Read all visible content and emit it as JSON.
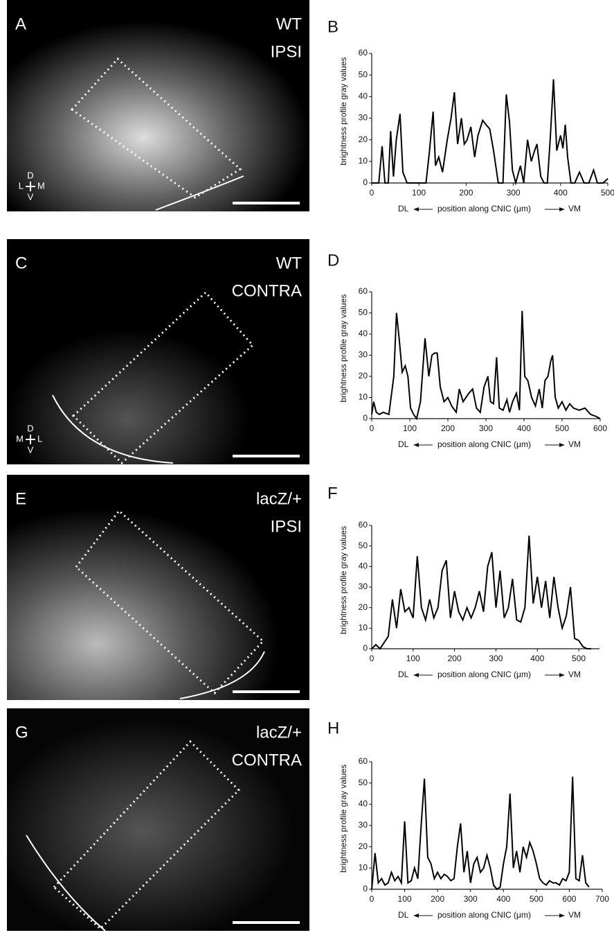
{
  "panels": [
    {
      "label": "A",
      "title_lines": [
        "WT",
        "IPSI"
      ],
      "orientation": {
        "top": "D",
        "left": "L",
        "right": "M",
        "bottom": "V"
      }
    },
    {
      "label": "C",
      "title_lines": [
        "WT",
        "CONTRA"
      ],
      "orientation": {
        "top": "D",
        "left": "M",
        "right": "L",
        "bottom": "V"
      }
    },
    {
      "label": "E",
      "title_lines": [
        "lacZ/+",
        "IPSI"
      ]
    },
    {
      "label": "G",
      "title_lines": [
        "lacZ/+",
        "CONTRA"
      ]
    }
  ],
  "chart_data": [
    {
      "type": "line",
      "panel_label": "B",
      "y_label": "brightness profile gray values",
      "x_label_left": "DL",
      "x_label": "position along CNIC (μm)",
      "x_label_right": "VM",
      "xlim": [
        0,
        500
      ],
      "xticks": [
        0,
        100,
        200,
        300,
        400,
        500
      ],
      "ylim": [
        0,
        60
      ],
      "yticks": [
        0,
        10,
        20,
        30,
        40,
        50,
        60
      ],
      "x": [
        0,
        15,
        22,
        28,
        35,
        40,
        46,
        52,
        60,
        66,
        75,
        85,
        95,
        105,
        115,
        122,
        130,
        135,
        142,
        150,
        160,
        168,
        175,
        182,
        190,
        196,
        202,
        210,
        218,
        225,
        235,
        242,
        250,
        258,
        268,
        278,
        285,
        292,
        298,
        305,
        315,
        322,
        330,
        338,
        345,
        350,
        358,
        365,
        372,
        378,
        385,
        392,
        400,
        405,
        410,
        415,
        422,
        430,
        440,
        450,
        460,
        470,
        478,
        490,
        500
      ],
      "series": [
        {
          "color": "#000000",
          "values": [
            0,
            0,
            17,
            0,
            0,
            24,
            3,
            20,
            32,
            5,
            0,
            0,
            0,
            0,
            0,
            14,
            33,
            8,
            12,
            5,
            20,
            30,
            42,
            18,
            30,
            18,
            20,
            26,
            12,
            22,
            29,
            27,
            25,
            15,
            0,
            0,
            41,
            28,
            6,
            0,
            8,
            0,
            20,
            10,
            15,
            18,
            3,
            0,
            0,
            20,
            48,
            15,
            22,
            16,
            27,
            12,
            0,
            0,
            5,
            0,
            0,
            6,
            0,
            0,
            2
          ]
        }
      ]
    },
    {
      "type": "line",
      "panel_label": "D",
      "y_label": "brightness profile gray values",
      "x_label_left": "DL",
      "x_label": "position along CNIC (μm)",
      "x_label_right": "VM",
      "xlim": [
        0,
        600
      ],
      "xticks": [
        0,
        100,
        200,
        300,
        400,
        500,
        600
      ],
      "ylim": [
        0,
        60
      ],
      "yticks": [
        0,
        10,
        20,
        30,
        40,
        50,
        60
      ],
      "x": [
        0,
        5,
        12,
        20,
        30,
        45,
        58,
        65,
        72,
        80,
        88,
        95,
        102,
        110,
        118,
        128,
        140,
        150,
        158,
        165,
        172,
        180,
        190,
        200,
        210,
        222,
        230,
        240,
        255,
        265,
        275,
        285,
        295,
        305,
        312,
        320,
        328,
        335,
        345,
        355,
        362,
        370,
        380,
        388,
        395,
        402,
        410,
        420,
        430,
        440,
        448,
        455,
        463,
        470,
        475,
        482,
        490,
        500,
        510,
        520,
        530,
        545,
        560,
        575,
        590,
        600
      ],
      "series": [
        {
          "color": "#000000",
          "values": [
            2,
            8,
            3,
            2,
            3,
            2,
            20,
            50,
            38,
            22,
            25,
            20,
            5,
            2,
            0,
            8,
            38,
            20,
            30,
            31,
            31,
            15,
            8,
            10,
            6,
            3,
            14,
            8,
            12,
            14,
            5,
            3,
            15,
            20,
            8,
            7,
            29,
            5,
            4,
            9,
            3,
            8,
            12,
            4,
            51,
            20,
            18,
            10,
            6,
            14,
            5,
            18,
            20,
            27,
            30,
            10,
            5,
            8,
            4,
            7,
            5,
            4,
            5,
            2,
            1,
            0
          ]
        }
      ]
    },
    {
      "type": "line",
      "panel_label": "F",
      "y_label": "brightness profile gray values",
      "x_label_left": "DL",
      "x_label": "position along CNIC (μm)",
      "x_label_right": "VM",
      "xlim": [
        0,
        550
      ],
      "xticks": [
        0,
        100,
        200,
        300,
        400,
        500
      ],
      "ylim": [
        0,
        60
      ],
      "yticks": [
        0,
        10,
        20,
        30,
        40,
        50,
        60
      ],
      "x": [
        0,
        10,
        20,
        30,
        40,
        50,
        60,
        70,
        80,
        90,
        100,
        110,
        120,
        130,
        140,
        150,
        160,
        170,
        180,
        190,
        200,
        210,
        220,
        230,
        240,
        250,
        260,
        270,
        280,
        290,
        300,
        310,
        320,
        330,
        340,
        350,
        360,
        370,
        380,
        390,
        400,
        410,
        420,
        430,
        440,
        450,
        460,
        470,
        480,
        490,
        500,
        510,
        520,
        530
      ],
      "series": [
        {
          "color": "#000000",
          "values": [
            0,
            2,
            0,
            3,
            6,
            24,
            10,
            29,
            18,
            20,
            15,
            45,
            20,
            14,
            24,
            15,
            20,
            38,
            43,
            15,
            28,
            18,
            14,
            20,
            15,
            20,
            28,
            18,
            40,
            47,
            20,
            38,
            15,
            20,
            34,
            14,
            13,
            20,
            55,
            22,
            35,
            20,
            33,
            15,
            35,
            20,
            10,
            16,
            30,
            5,
            4,
            1,
            0,
            0
          ]
        }
      ]
    },
    {
      "type": "line",
      "panel_label": "H",
      "y_label": "brightness profile gray values",
      "x_label_left": "DL",
      "x_label": "position along CNIC (μm)",
      "x_label_right": "VM",
      "xlim": [
        0,
        700
      ],
      "xticks": [
        0,
        100,
        200,
        300,
        400,
        500,
        600,
        700
      ],
      "ylim": [
        0,
        60
      ],
      "yticks": [
        0,
        10,
        20,
        30,
        40,
        50,
        60
      ],
      "x": [
        0,
        10,
        20,
        30,
        40,
        50,
        60,
        70,
        80,
        90,
        100,
        110,
        120,
        130,
        140,
        150,
        160,
        170,
        180,
        190,
        200,
        210,
        220,
        230,
        240,
        250,
        260,
        270,
        280,
        290,
        300,
        310,
        320,
        330,
        340,
        350,
        360,
        370,
        380,
        390,
        400,
        410,
        420,
        430,
        440,
        450,
        460,
        470,
        480,
        490,
        500,
        510,
        520,
        530,
        540,
        550,
        560,
        570,
        580,
        590,
        600,
        610,
        620,
        630,
        640,
        650,
        660
      ],
      "series": [
        {
          "color": "#000000",
          "values": [
            0,
            17,
            3,
            5,
            2,
            3,
            8,
            4,
            6,
            3,
            32,
            3,
            4,
            10,
            5,
            30,
            52,
            15,
            12,
            5,
            8,
            5,
            7,
            6,
            4,
            5,
            20,
            31,
            8,
            18,
            3,
            12,
            15,
            8,
            10,
            16,
            10,
            2,
            0,
            1,
            12,
            20,
            45,
            10,
            18,
            8,
            20,
            15,
            22,
            18,
            12,
            5,
            3,
            2,
            4,
            3,
            3,
            2,
            5,
            4,
            8,
            53,
            5,
            4,
            16,
            3,
            1
          ]
        }
      ]
    }
  ]
}
